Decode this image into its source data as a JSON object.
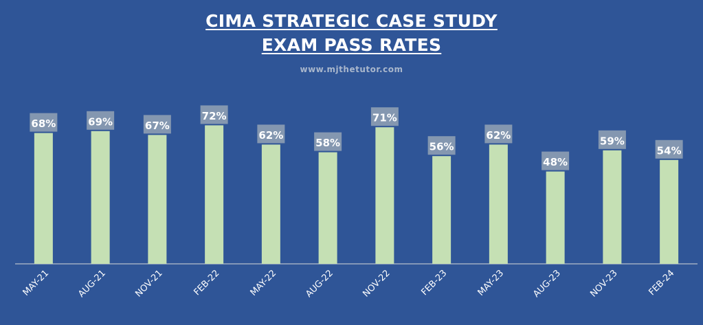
{
  "title_lines": [
    "CIMA STRATEGIC CASE STUDY",
    "EXAM PASS RATES"
  ],
  "subtitle": "www.mjthetutor.com",
  "colors": {
    "background": "#2f5597",
    "bar": "#c5e0b4",
    "label_box": "#8497b0",
    "label_text": "#ffffff",
    "axis": "#d9d9d9",
    "tick_text": "#ffffff",
    "subtitle": "#a9b7cc"
  },
  "chart_data": {
    "type": "bar",
    "title": "CIMA STRATEGIC CASE STUDY EXAM PASS RATES",
    "categories": [
      "MAY-21",
      "AUG-21",
      "NOV-21",
      "FEB-22",
      "MAY-22",
      "AUG-22",
      "NOV-22",
      "FEB-23",
      "MAY-23",
      "AUG-23",
      "NOV-23",
      "FEB-24"
    ],
    "values": [
      68,
      69,
      67,
      72,
      62,
      58,
      71,
      56,
      62,
      48,
      59,
      54
    ],
    "value_labels": [
      "68%",
      "69%",
      "67%",
      "72%",
      "62%",
      "58%",
      "71%",
      "56%",
      "62%",
      "48%",
      "59%",
      "54%"
    ],
    "ylim": [
      0,
      100
    ],
    "grid": false,
    "legend": "none"
  }
}
